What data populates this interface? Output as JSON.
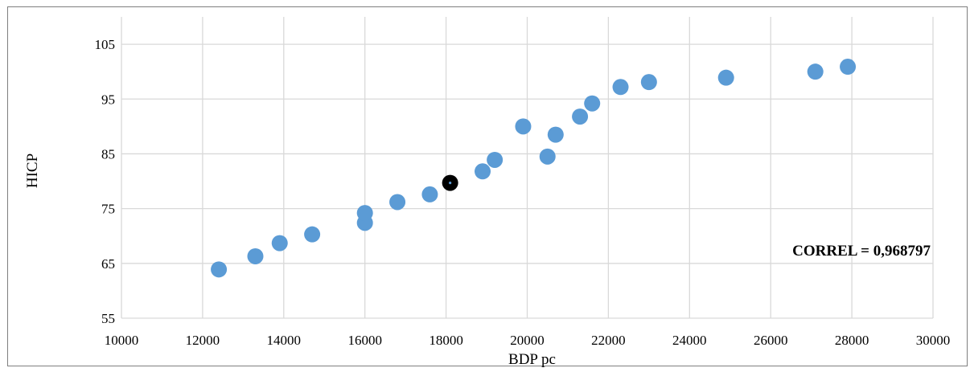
{
  "chart_data": {
    "type": "scatter",
    "xlabel": "BDP pc",
    "ylabel": "HICP",
    "xlim": [
      10000,
      30000
    ],
    "ylim": [
      55,
      110
    ],
    "x_ticks": [
      10000,
      12000,
      14000,
      16000,
      18000,
      20000,
      22000,
      24000,
      26000,
      28000,
      30000
    ],
    "y_ticks": [
      55,
      65,
      75,
      85,
      95,
      105
    ],
    "grid": true,
    "annotation": "CORREL = 0,968797",
    "point_color": "#5B9BD5",
    "highlight_color": "#000000",
    "points": [
      {
        "x": 12400,
        "y": 63.9
      },
      {
        "x": 13300,
        "y": 66.3
      },
      {
        "x": 13900,
        "y": 68.7
      },
      {
        "x": 14700,
        "y": 70.3
      },
      {
        "x": 16000,
        "y": 72.4
      },
      {
        "x": 16000,
        "y": 74.2
      },
      {
        "x": 16800,
        "y": 76.2
      },
      {
        "x": 17600,
        "y": 77.6
      },
      {
        "x": 18100,
        "y": 79.7,
        "highlight": true
      },
      {
        "x": 18900,
        "y": 81.8
      },
      {
        "x": 19200,
        "y": 83.9
      },
      {
        "x": 19900,
        "y": 90.0
      },
      {
        "x": 20500,
        "y": 84.5
      },
      {
        "x": 20700,
        "y": 88.5
      },
      {
        "x": 21300,
        "y": 91.8
      },
      {
        "x": 21600,
        "y": 94.2
      },
      {
        "x": 22300,
        "y": 97.2
      },
      {
        "x": 23000,
        "y": 98.1
      },
      {
        "x": 24900,
        "y": 98.9
      },
      {
        "x": 27100,
        "y": 100.0
      },
      {
        "x": 27900,
        "y": 100.9
      }
    ]
  }
}
